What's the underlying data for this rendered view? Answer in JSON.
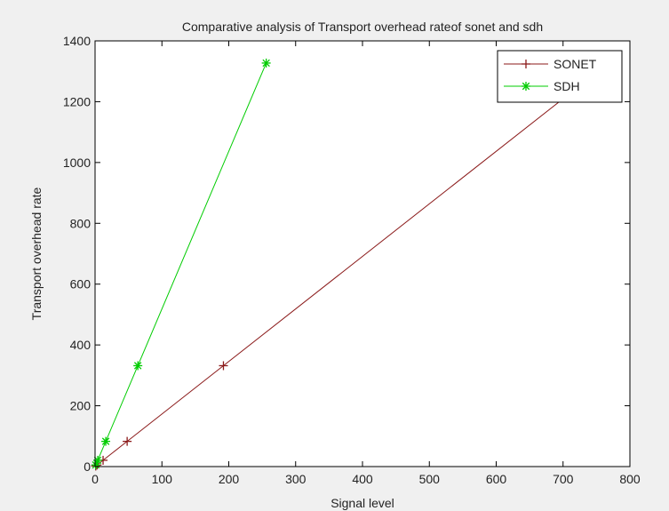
{
  "chart_data": {
    "type": "line",
    "title": "Comparative analysis of Transport overhead rateof sonet and sdh",
    "xlabel": "Signal level",
    "ylabel": "Transport overhead rate",
    "xlim": [
      0,
      800
    ],
    "ylim": [
      0,
      1400
    ],
    "xticks": [
      "0",
      "100",
      "200",
      "300",
      "400",
      "500",
      "600",
      "700",
      "800"
    ],
    "yticks": [
      "0",
      "200",
      "400",
      "600",
      "800",
      "1000",
      "1200",
      "1400"
    ],
    "grid": false,
    "legend_position": "top-right",
    "series": [
      {
        "name": "SONET",
        "color": "#8b1a1a",
        "marker": "plus",
        "x": [
          1,
          3,
          12,
          48,
          192,
          768
        ],
        "y": [
          1.7,
          5.2,
          20.7,
          82.9,
          331.8,
          1327.1
        ]
      },
      {
        "name": "SDH",
        "color": "#00cc00",
        "marker": "star",
        "x": [
          1,
          4,
          16,
          64,
          256
        ],
        "y": [
          5.2,
          20.7,
          82.9,
          331.8,
          1327.1
        ]
      }
    ]
  }
}
